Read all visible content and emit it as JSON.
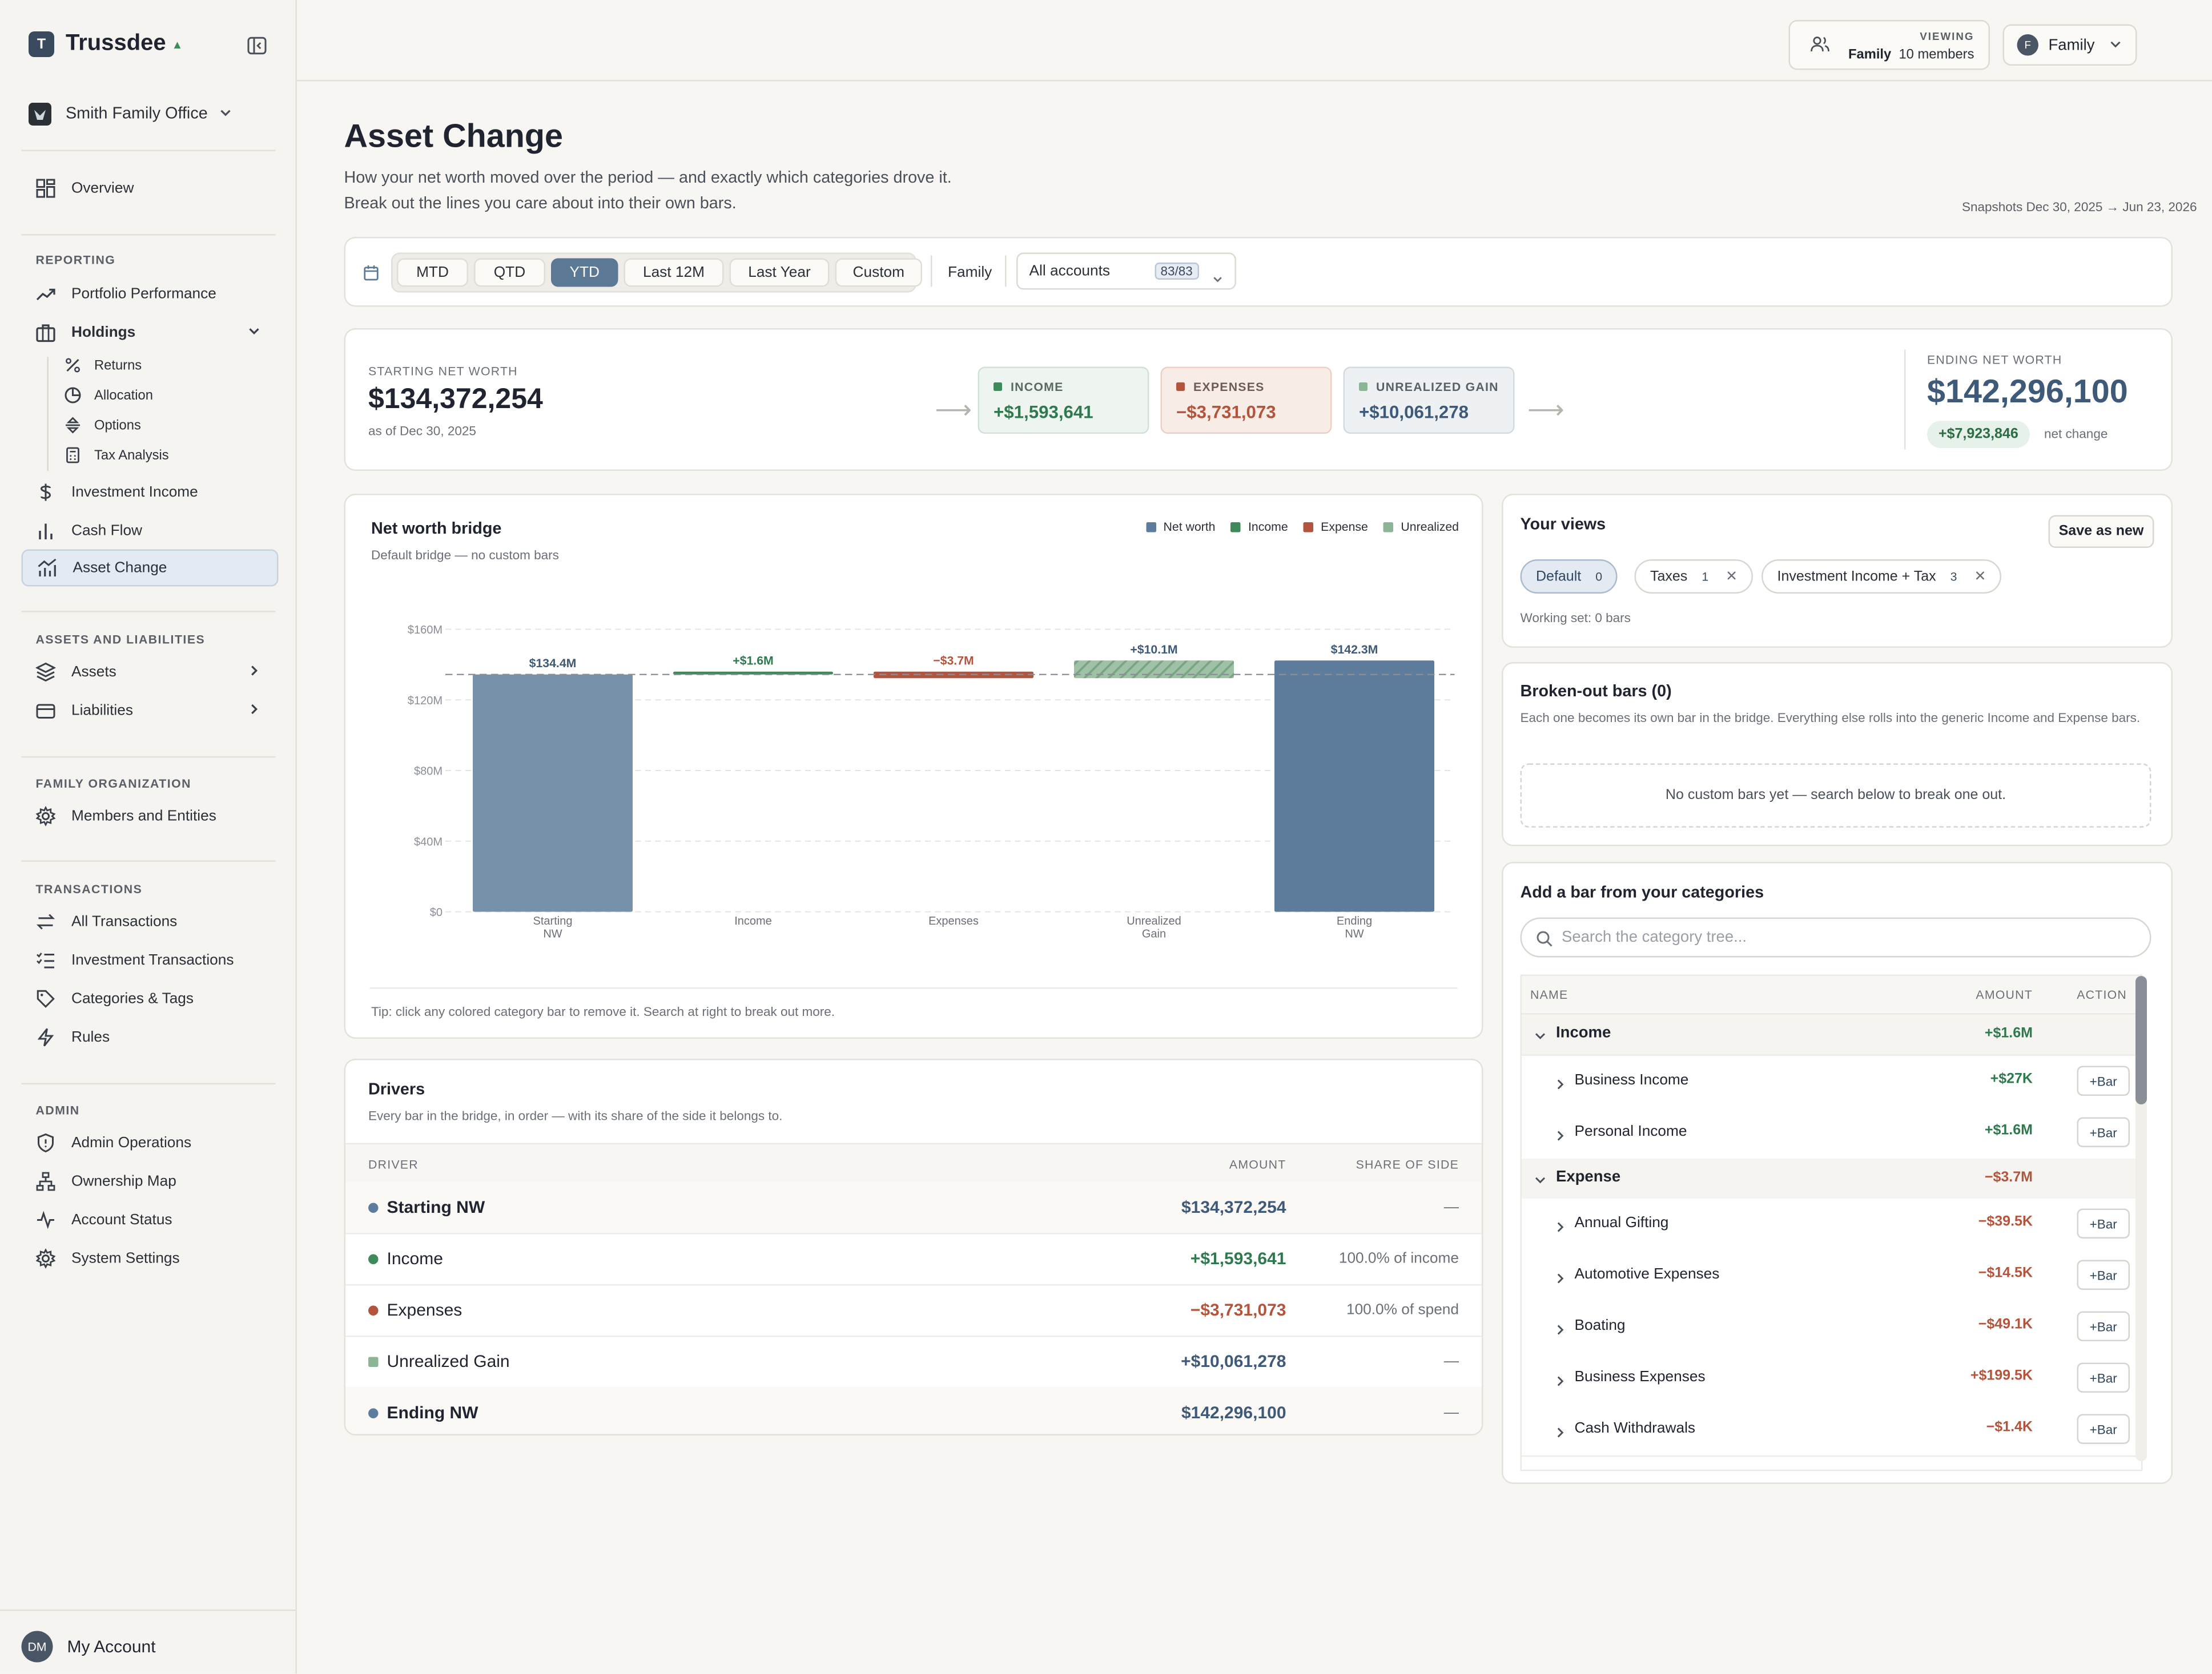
{
  "app": {
    "brand_initial": "T",
    "brand_name": "Trussdee",
    "office_name": "Smith Family Office"
  },
  "topbar": {
    "viewing_label": "VIEWING",
    "viewing_name": "Family",
    "viewing_members": "10 members",
    "family_initial": "F",
    "family_label": "Family"
  },
  "sidebar": {
    "overview": "Overview",
    "reporting_label": "REPORTING",
    "portfolio_performance": "Portfolio Performance",
    "holdings": "Holdings",
    "holdings_sub": [
      "Returns",
      "Allocation",
      "Options",
      "Tax Analysis"
    ],
    "investment_income": "Investment Income",
    "cash_flow": "Cash Flow",
    "asset_change": "Asset Change",
    "assets_liabilities_label": "ASSETS AND LIABILITIES",
    "assets": "Assets",
    "liabilities": "Liabilities",
    "family_org_label": "FAMILY ORGANIZATION",
    "members_entities": "Members and Entities",
    "transactions_label": "TRANSACTIONS",
    "all_transactions": "All Transactions",
    "investment_transactions": "Investment Transactions",
    "categories_tags": "Categories & Tags",
    "rules": "Rules",
    "admin_label": "ADMIN",
    "admin_operations": "Admin Operations",
    "ownership_map": "Ownership Map",
    "account_status": "Account Status",
    "system_settings": "System Settings",
    "account_initials": "DM",
    "account_name": "My Account"
  },
  "page": {
    "title": "Asset Change",
    "subtitle_line1": "How your net worth moved over the period — and exactly which categories drove it.",
    "subtitle_line2": "Break out the lines you care about into their own bars.",
    "snapshots": "Snapshots Dec 30, 2025 → Jun 23, 2026"
  },
  "filters": {
    "periods": [
      "MTD",
      "QTD",
      "YTD",
      "Last 12M",
      "Last Year",
      "Custom"
    ],
    "active_period": "YTD",
    "family_label": "Family",
    "accounts_label": "All accounts",
    "accounts_count": "83/83"
  },
  "summary": {
    "start_label": "STARTING NET WORTH",
    "start_value": "$134,372,254",
    "start_sub": "as of Dec 30, 2025",
    "income_label": "INCOME",
    "income_value": "+$1,593,641",
    "expenses_label": "EXPENSES",
    "expenses_value": "−$3,731,073",
    "unrealized_label": "UNREALIZED GAIN",
    "unrealized_value": "+$10,061,278",
    "end_label": "ENDING NET WORTH",
    "end_value": "$142,296,100",
    "net_change": "+$7,923,846",
    "net_change_label": "net change"
  },
  "bridge": {
    "title": "Net worth bridge",
    "subtitle": "Default bridge — no custom bars",
    "tip": "Tip: click any colored category bar to remove it. Search at right to break out more."
  },
  "chart_data": {
    "type": "bar",
    "subtype": "waterfall",
    "title": "Net worth bridge",
    "categories": [
      "Starting NW",
      "Income",
      "Expenses",
      "Unrealized Gain",
      "Ending NW"
    ],
    "category_labels": [
      [
        "Starting",
        "NW"
      ],
      [
        "Income"
      ],
      [
        "Expenses"
      ],
      [
        "Unrealized",
        "Gain"
      ],
      [
        "Ending",
        "NW"
      ]
    ],
    "kinds": [
      "net",
      "income",
      "expense",
      "unrealized",
      "net"
    ],
    "values": [
      134.4,
      1.6,
      -3.7,
      10.1,
      142.3
    ],
    "bar_ranges": [
      [
        0,
        134.4
      ],
      [
        134.4,
        136.0
      ],
      [
        132.3,
        136.0
      ],
      [
        132.3,
        142.3
      ],
      [
        0,
        142.3
      ]
    ],
    "data_labels": [
      "$134.4M",
      "+$1.6M",
      "−$3.7M",
      "+$10.1M",
      "$142.3M"
    ],
    "reference_line": 134.4,
    "ylim": [
      0,
      160
    ],
    "yticks": [
      0,
      40,
      80,
      120,
      160
    ],
    "ytick_labels": [
      "$0",
      "$40M",
      "$80M",
      "$120M",
      "$160M"
    ],
    "legend": [
      "Net worth",
      "Income",
      "Expense",
      "Unrealized"
    ],
    "legend_position": "top-right",
    "colors": {
      "net_start": "#7791aa",
      "net_end": "#5e7d9c",
      "income": "#3f8a5a",
      "expense": "#b2553c",
      "unrealized": "#8bb595"
    },
    "grid": true,
    "xlabel": "",
    "ylabel": ""
  },
  "drivers": {
    "title": "Drivers",
    "subtitle": "Every bar in the bridge, in order — with its share of the side it belongs to.",
    "headers": {
      "driver": "DRIVER",
      "amount": "AMOUNT",
      "share": "SHARE OF SIDE"
    },
    "rows": [
      {
        "name": "Starting NW",
        "amount": "$134,372,254",
        "share": "—"
      },
      {
        "name": "Income",
        "amount": "+$1,593,641",
        "share": "100.0% of income"
      },
      {
        "name": "Expenses",
        "amount": "−$3,731,073",
        "share": "100.0% of spend"
      },
      {
        "name": "Unrealized Gain",
        "amount": "+$10,061,278",
        "share": "—"
      },
      {
        "name": "Ending NW",
        "amount": "$142,296,100",
        "share": "—"
      }
    ]
  },
  "views": {
    "title": "Your views",
    "save_label": "Save as new",
    "pills": [
      {
        "name": "Default",
        "count": "0"
      },
      {
        "name": "Taxes",
        "count": "1"
      },
      {
        "name": "Investment Income + Tax",
        "count": "3"
      }
    ],
    "working": "Working set: 0 bars"
  },
  "broken": {
    "title": "Broken-out bars (0)",
    "desc": "Each one becomes its own bar in the bridge. Everything else rolls into the generic Income and Expense bars.",
    "empty": "No custom bars yet — search below to break one out."
  },
  "addbar": {
    "title": "Add a bar from your categories",
    "search_placeholder": "Search the category tree...",
    "headers": {
      "name": "NAME",
      "amount": "AMOUNT",
      "action": "ACTION"
    },
    "bar_label": "+Bar",
    "groups": {
      "income": {
        "name": "Income",
        "amount": "+$1.6M"
      },
      "expense": {
        "name": "Expense",
        "amount": "−$3.7M"
      }
    },
    "income_items": [
      {
        "name": "Business Income",
        "amount": "+$27K"
      },
      {
        "name": "Personal Income",
        "amount": "+$1.6M"
      }
    ],
    "expense_items": [
      {
        "name": "Annual Gifting",
        "amount": "−$39.5K"
      },
      {
        "name": "Automotive Expenses",
        "amount": "−$14.5K"
      },
      {
        "name": "Boating",
        "amount": "−$49.1K"
      },
      {
        "name": "Business Expenses",
        "amount": "+$199.5K"
      },
      {
        "name": "Cash Withdrawals",
        "amount": "−$1.4K"
      }
    ]
  }
}
